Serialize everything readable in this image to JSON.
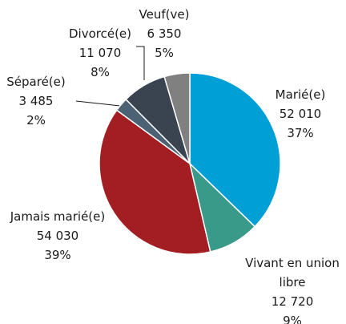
{
  "chart_data": {
    "type": "pie",
    "categories": [
      "Marié(e)",
      "Vivant en union libre",
      "Jamais marié(e)",
      "Séparé(e)",
      "Divorcé(e)",
      "Veuf(ve)"
    ],
    "values": [
      52010,
      12720,
      54030,
      3485,
      11070,
      6350
    ],
    "value_labels": [
      "52 010",
      "12 720",
      "54 030",
      "3 485",
      "11 070",
      "6 350"
    ],
    "percentages": [
      37,
      9,
      39,
      2,
      8,
      5
    ],
    "percentage_labels": [
      "37%",
      "9%",
      "39%",
      "2%",
      "8%",
      "5%"
    ],
    "colors": [
      "#009fd6",
      "#3a9a8a",
      "#a31e22",
      "#4a6274",
      "#3a4350",
      "#808080"
    ]
  }
}
